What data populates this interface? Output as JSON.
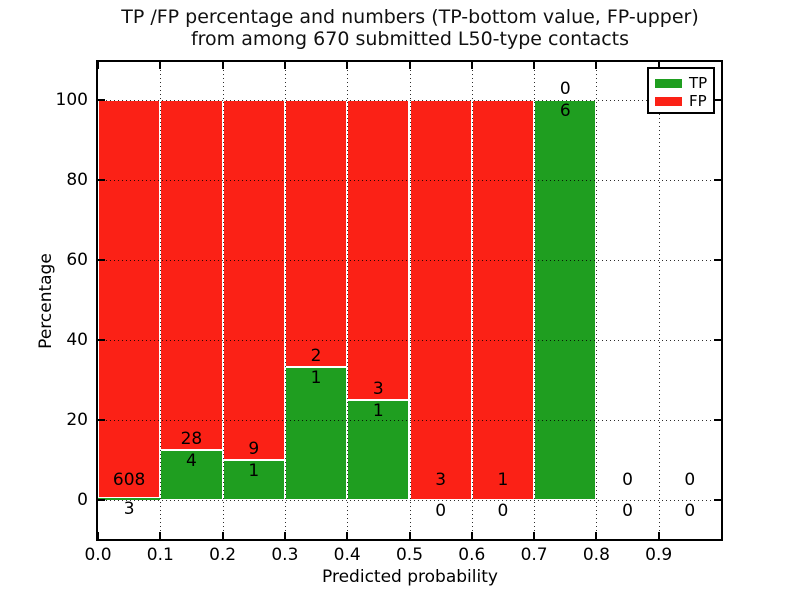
{
  "figure": {
    "title_line1": "TP /FP percentage and numbers (TP-bottom value, FP-upper)",
    "title_line2": "from among 670 submitted L50-type contacts"
  },
  "chart_data": {
    "type": "bar",
    "stacked": true,
    "title": "TP /FP percentage and numbers (TP-bottom value, FP-upper)\nfrom among 670 submitted L50-type contacts",
    "xlabel": "Predicted probability",
    "ylabel": "Percentage",
    "xlim": [
      0.0,
      1.0
    ],
    "ylim": [
      -10,
      110
    ],
    "grid": "dotted",
    "legend_position": "upper right",
    "total_contacts": 670,
    "bin_edges": [
      0.0,
      0.1,
      0.2,
      0.3,
      0.4,
      0.5,
      0.6,
      0.7,
      0.8,
      0.9,
      1.0
    ],
    "x_tick_labels": [
      "0.0",
      "0.1",
      "0.2",
      "0.3",
      "0.4",
      "0.5",
      "0.6",
      "0.7",
      "0.8",
      "0.9"
    ],
    "y_tick_values": [
      0,
      20,
      40,
      60,
      80,
      100
    ],
    "y_tick_labels": [
      "0",
      "20",
      "40",
      "60",
      "80",
      "100"
    ],
    "series": [
      {
        "name": "TP",
        "color": "#1f9e20",
        "counts": [
          3,
          4,
          1,
          1,
          1,
          0,
          0,
          6,
          0,
          0
        ]
      },
      {
        "name": "FP",
        "color": "#fb2116",
        "counts": [
          608,
          28,
          9,
          2,
          3,
          3,
          1,
          0,
          0,
          0
        ]
      }
    ],
    "tp_percent_of_bin": [
      0.49,
      12.5,
      10.0,
      33.3,
      25.0,
      0.0,
      0.0,
      100.0,
      null,
      null
    ],
    "bar_edge_color": "#ffffff"
  },
  "legend": {
    "items": [
      {
        "label": "TP",
        "color": "#1f9e20"
      },
      {
        "label": "FP",
        "color": "#fb2116"
      }
    ]
  }
}
